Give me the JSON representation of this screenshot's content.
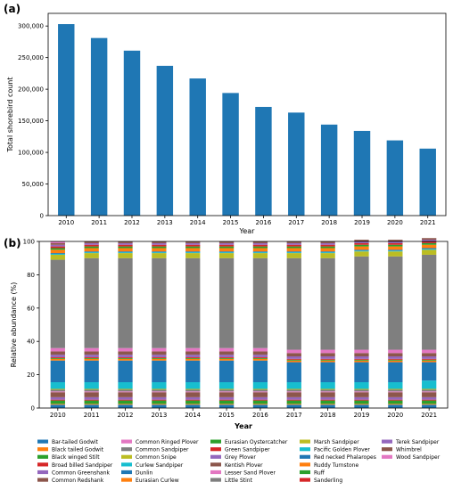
{
  "chart_data": [
    {
      "panel_label": "(a)",
      "type": "bar",
      "categories": [
        "2010",
        "2011",
        "2012",
        "2013",
        "2014",
        "2015",
        "2016",
        "2017",
        "2018",
        "2019",
        "2020",
        "2021"
      ],
      "values": [
        303000,
        281000,
        261000,
        237000,
        217000,
        194000,
        172000,
        163000,
        144000,
        134000,
        119000,
        106000
      ],
      "color": "#1f77b4",
      "xlabel": "Year",
      "ylabel": "Total shorebird count",
      "ylim": [
        0,
        320000
      ],
      "yticks": [
        0,
        50000,
        100000,
        150000,
        200000,
        250000,
        300000
      ],
      "ytick_labels": [
        "0",
        "50,000",
        "100,000",
        "150,000",
        "200,000",
        "250,000",
        "300,000"
      ],
      "grid": false
    },
    {
      "panel_label": "(b)",
      "type": "bar",
      "stacked": true,
      "categories": [
        "2010",
        "2011",
        "2012",
        "2013",
        "2014",
        "2015",
        "2016",
        "2017",
        "2018",
        "2019",
        "2020",
        "2021"
      ],
      "xlabel": "Year",
      "ylabel": "Relative abundance (%)",
      "ylim": [
        0,
        100
      ],
      "yticks": [
        0,
        20,
        40,
        60,
        80,
        100
      ],
      "grid": false,
      "legend_position": "bottom",
      "series": [
        {
          "name": "Bar-tailed Godwit",
          "color": "#1f77b4",
          "values": [
            2.0,
            2.0,
            2.0,
            2.0,
            2.0,
            2.0,
            2.0,
            2.0,
            2.0,
            2.0,
            2.0,
            2.0
          ]
        },
        {
          "name": "Black tailed Godwit",
          "color": "#ff7f0e",
          "values": [
            0.5,
            0.5,
            0.5,
            0.5,
            0.5,
            0.5,
            0.5,
            0.5,
            0.5,
            0.5,
            0.5,
            0.5
          ]
        },
        {
          "name": "Black winged Stilt",
          "color": "#2ca02c",
          "values": [
            2.0,
            2.0,
            2.0,
            2.0,
            2.0,
            2.0,
            2.0,
            2.0,
            2.0,
            2.0,
            2.0,
            2.0
          ]
        },
        {
          "name": "Broad billed Sandpiper",
          "color": "#d62728",
          "values": [
            0.5,
            0.5,
            0.5,
            0.5,
            0.5,
            0.5,
            0.5,
            0.5,
            0.5,
            0.5,
            0.5,
            0.5
          ]
        },
        {
          "name": "Common Greenshank",
          "color": "#9467bd",
          "values": [
            1.5,
            1.5,
            1.5,
            1.5,
            1.5,
            1.5,
            1.5,
            1.5,
            1.5,
            1.5,
            1.5,
            1.5
          ]
        },
        {
          "name": "Common Redshank",
          "color": "#8c564b",
          "values": [
            3.0,
            3.0,
            3.0,
            3.0,
            3.0,
            3.0,
            3.0,
            3.0,
            3.0,
            3.0,
            3.0,
            3.0
          ]
        },
        {
          "name": "Common Ringed Plover",
          "color": "#e377c2",
          "values": [
            0.5,
            0.5,
            0.5,
            0.5,
            0.5,
            0.5,
            0.5,
            0.5,
            0.5,
            0.5,
            0.5,
            0.5
          ]
        },
        {
          "name": "Common Sandpiper",
          "color": "#7f7f7f",
          "values": [
            1.0,
            1.0,
            1.0,
            1.0,
            1.0,
            1.0,
            1.0,
            1.0,
            1.0,
            1.0,
            1.0,
            1.0
          ]
        },
        {
          "name": "Common Snipe",
          "color": "#bcbd22",
          "values": [
            0.5,
            0.5,
            0.5,
            0.5,
            0.5,
            0.5,
            0.5,
            0.5,
            0.5,
            0.5,
            0.5,
            0.5
          ]
        },
        {
          "name": "Curlew Sandpiper",
          "color": "#17becf",
          "values": [
            4.0,
            4.0,
            4.0,
            4.0,
            4.0,
            4.0,
            4.0,
            4.0,
            4.0,
            4.0,
            4.0,
            5.0
          ]
        },
        {
          "name": "Dunlin",
          "color": "#1f77b4",
          "values": [
            13.0,
            13.0,
            13.0,
            13.0,
            13.0,
            13.0,
            13.0,
            12.0,
            12.0,
            12.0,
            12.0,
            11.0
          ]
        },
        {
          "name": "Eurasian Curlew",
          "color": "#ff7f0e",
          "values": [
            1.0,
            1.0,
            1.0,
            1.0,
            1.0,
            1.0,
            1.0,
            1.0,
            1.0,
            1.0,
            1.0,
            1.0
          ]
        },
        {
          "name": "Eurasian Oystercatcher",
          "color": "#2ca02c",
          "values": [
            0.5,
            0.5,
            0.5,
            0.5,
            0.5,
            0.5,
            0.5,
            0.5,
            0.5,
            0.5,
            0.5,
            0.5
          ]
        },
        {
          "name": "Green Sandpiper",
          "color": "#d62728",
          "values": [
            0.5,
            0.5,
            0.5,
            0.5,
            0.5,
            0.5,
            0.5,
            0.5,
            0.5,
            0.5,
            0.5,
            0.5
          ]
        },
        {
          "name": "Grey Plover",
          "color": "#9467bd",
          "values": [
            1.5,
            1.5,
            1.5,
            1.5,
            1.5,
            1.5,
            1.5,
            1.5,
            1.5,
            1.5,
            1.5,
            1.5
          ]
        },
        {
          "name": "Kentish Plover",
          "color": "#8c564b",
          "values": [
            2.0,
            2.0,
            2.0,
            2.0,
            2.0,
            2.0,
            2.0,
            2.0,
            2.0,
            2.0,
            2.0,
            2.0
          ]
        },
        {
          "name": "Lesser Sand Plover",
          "color": "#e377c2",
          "values": [
            2.0,
            2.0,
            2.0,
            2.0,
            2.0,
            2.0,
            2.0,
            2.0,
            2.0,
            2.0,
            2.0,
            2.0
          ]
        },
        {
          "name": "Little Stint",
          "color": "#7f7f7f",
          "values": [
            53.0,
            54.0,
            54.0,
            54.0,
            54.0,
            54.0,
            54.0,
            55.0,
            55.0,
            56.0,
            56.0,
            57.0
          ]
        },
        {
          "name": "Marsh Sandpiper",
          "color": "#bcbd22",
          "values": [
            3.0,
            3.0,
            3.0,
            3.0,
            3.0,
            3.0,
            3.0,
            3.0,
            3.0,
            3.0,
            3.0,
            3.0
          ]
        },
        {
          "name": "Pacific Golden Plover",
          "color": "#17becf",
          "values": [
            0.5,
            0.5,
            0.5,
            0.5,
            0.5,
            0.5,
            0.5,
            0.5,
            0.5,
            0.5,
            0.5,
            0.5
          ]
        },
        {
          "name": "Red necked Phalaropes",
          "color": "#1f77b4",
          "values": [
            0.5,
            0.5,
            0.5,
            0.5,
            0.5,
            0.5,
            0.5,
            0.5,
            0.5,
            0.5,
            0.5,
            0.5
          ]
        },
        {
          "name": "Ruddy Turnstone",
          "color": "#ff7f0e",
          "values": [
            2.0,
            2.0,
            2.0,
            2.0,
            2.0,
            2.0,
            2.0,
            2.0,
            2.0,
            2.0,
            2.0,
            2.0
          ]
        },
        {
          "name": "Ruff",
          "color": "#2ca02c",
          "values": [
            1.0,
            1.0,
            1.0,
            1.0,
            1.0,
            1.0,
            1.0,
            1.0,
            1.0,
            1.0,
            1.0,
            1.0
          ]
        },
        {
          "name": "Sanderling",
          "color": "#d62728",
          "values": [
            1.0,
            1.0,
            1.0,
            1.0,
            1.0,
            1.0,
            1.0,
            1.0,
            1.0,
            1.0,
            1.0,
            1.0
          ]
        },
        {
          "name": "Terek Sandpiper",
          "color": "#9467bd",
          "values": [
            1.0,
            1.0,
            1.0,
            1.0,
            1.0,
            1.0,
            1.0,
            1.0,
            1.0,
            1.0,
            1.0,
            1.0
          ]
        },
        {
          "name": "Whimbrel",
          "color": "#8c564b",
          "values": [
            1.0,
            1.0,
            1.0,
            1.0,
            1.0,
            1.0,
            1.0,
            1.0,
            1.0,
            1.0,
            1.0,
            1.0
          ]
        },
        {
          "name": "Wood Sandpiper",
          "color": "#e377c2",
          "values": [
            1.0,
            0.0,
            0.0,
            0.0,
            0.0,
            0.0,
            0.0,
            0.0,
            0.0,
            0.0,
            0.0,
            0.0
          ]
        }
      ]
    }
  ]
}
